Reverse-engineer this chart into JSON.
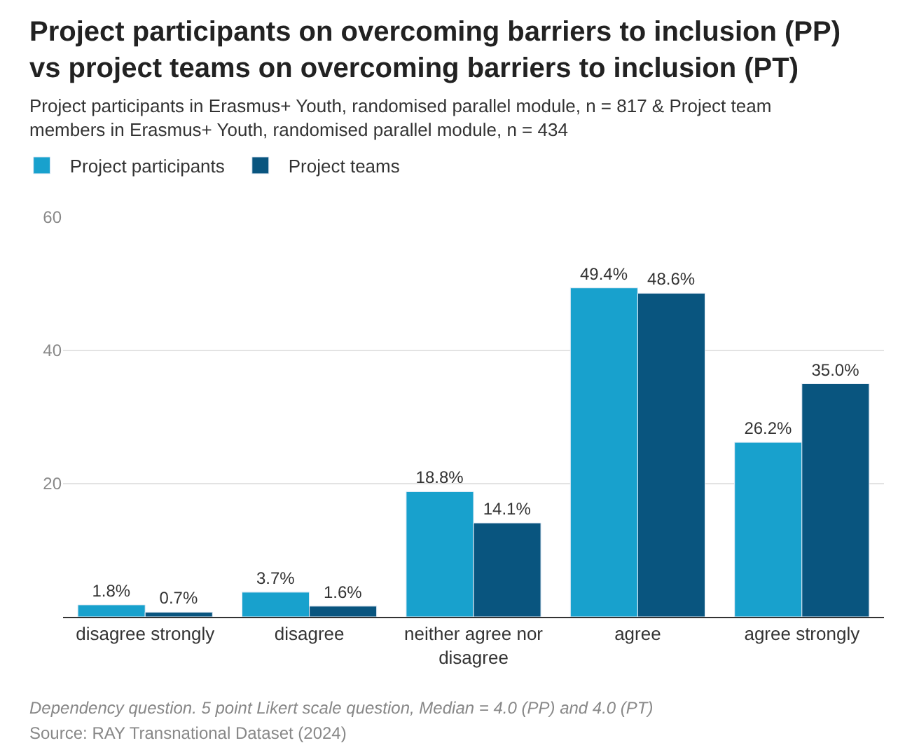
{
  "chart_data": {
    "type": "bar",
    "title": "Project participants on overcoming barriers to inclusion (PP) vs project teams on overcoming barriers to inclusion (PT)",
    "subtitle": "Project participants in Erasmus+ Youth, randomised parallel module, n = 817 & Project team members in Erasmus+ Youth, randomised parallel module, n = 434",
    "categories": [
      "disagree strongly",
      "disagree",
      "neither agree nor disagree",
      "agree",
      "agree strongly"
    ],
    "series": [
      {
        "name": "Project participants",
        "color": "#18a1cd",
        "values": [
          1.8,
          3.7,
          18.8,
          49.4,
          26.2
        ],
        "value_labels": [
          "1.8%",
          "3.7%",
          "18.8%",
          "49.4%",
          "26.2%"
        ]
      },
      {
        "name": "Project teams",
        "color": "#09557f",
        "values": [
          0.7,
          1.6,
          14.1,
          48.6,
          35.0
        ],
        "value_labels": [
          "0.7%",
          "1.6%",
          "14.1%",
          "48.6%",
          "35.0%"
        ]
      }
    ],
    "ylim": [
      0,
      60
    ],
    "yticks": [
      {
        "value": 0,
        "label": null
      },
      20,
      40,
      60
    ],
    "grid": "y",
    "legend": "top left",
    "annotations": [
      "Dependency question. 5 point Likert scale question, Median = 4.0 (PP) and 4.0 (PT)",
      "Source: RAY Transnational Dataset (2024)"
    ]
  }
}
